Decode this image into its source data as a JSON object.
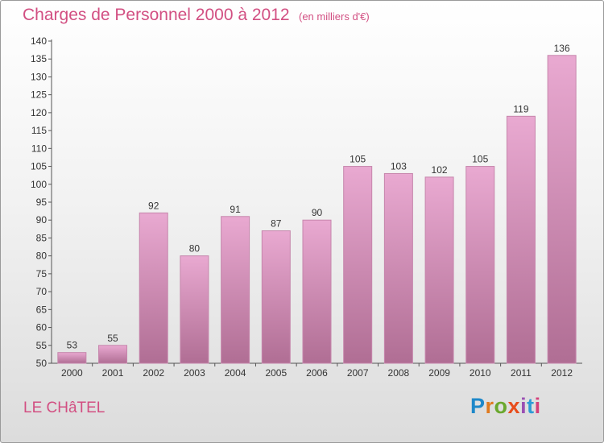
{
  "header": {
    "title": "Charges de Personnel 2000 à 2012",
    "subtitle": "(en milliers d'€)"
  },
  "footer": {
    "city": "LE CHâTEL",
    "logo_letters": [
      "P",
      "r",
      "o",
      "x",
      "i",
      "t",
      "i"
    ],
    "logo_colors": [
      "#1e88c9",
      "#e07a1f",
      "#6aa82e",
      "#e84d1c",
      "#9a4fb3",
      "#2e9bd6",
      "#d43f7a"
    ]
  },
  "colors": {
    "bar_top": "#e9a9d1",
    "bar_bottom": "#b06e94",
    "bar_edge": "#c686ac",
    "text_accent": "#d24f82"
  },
  "chart_data": {
    "type": "bar",
    "title": "Charges de Personnel 2000 à 2012",
    "subtitle": "(en milliers d'€)",
    "xlabel": "",
    "ylabel": "",
    "categories": [
      "2000",
      "2001",
      "2002",
      "2003",
      "2004",
      "2005",
      "2006",
      "2007",
      "2008",
      "2009",
      "2010",
      "2011",
      "2012"
    ],
    "values": [
      53,
      55,
      92,
      80,
      91,
      87,
      90,
      105,
      103,
      102,
      105,
      119,
      136
    ],
    "ylim": [
      50,
      140
    ],
    "yticks": [
      50,
      55,
      60,
      65,
      70,
      75,
      80,
      85,
      90,
      95,
      100,
      105,
      110,
      115,
      120,
      125,
      130,
      135,
      140
    ],
    "grid": false,
    "data_labels": true
  }
}
